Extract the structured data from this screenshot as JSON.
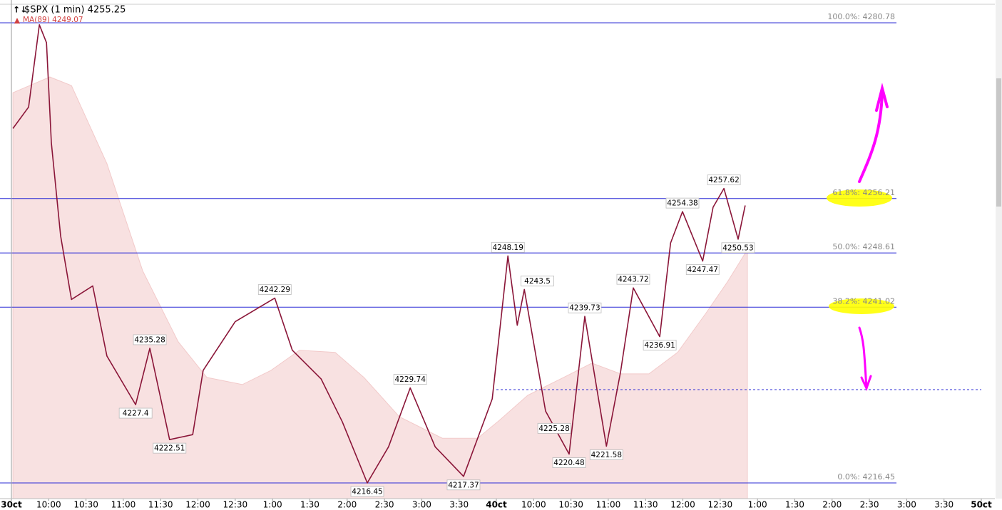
{
  "chart_data": {
    "type": "line",
    "title": "$SPX (1 min) 4255.25",
    "ma": {
      "name": "MA(89)",
      "last": 4249.07,
      "color": "#f8e1e1",
      "x": [
        0.04,
        1.03,
        1.61,
        2.56,
        3.52,
        4.47,
        5.24,
        6.19,
        6.96,
        7.72,
        8.68,
        9.45,
        10.4,
        11.55,
        12.5,
        13.08,
        13.84,
        14.8,
        15.56,
        16.33,
        17.09,
        17.86,
        18.62,
        19.2,
        19.73
      ],
      "values": [
        4271.0,
        4273.2,
        4272.0,
        4261.1,
        4246.1,
        4236.2,
        4231.2,
        4230.2,
        4232.2,
        4235.0,
        4234.7,
        4231.2,
        4225.7,
        4222.7,
        4222.7,
        4225.2,
        4228.7,
        4231.2,
        4233.2,
        4231.7,
        4231.7,
        4234.7,
        4240.2,
        4244.6,
        4249.07
      ]
    },
    "price": {
      "color": "#8a1538",
      "x": [
        0.04,
        0.46,
        0.75,
        0.94,
        1.07,
        1.32,
        1.61,
        2.18,
        2.56,
        3.33,
        3.71,
        4.24,
        4.86,
        5.14,
        6.0,
        7.06,
        7.53,
        8.3,
        8.87,
        9.54,
        10.11,
        10.69,
        11.36,
        12.12,
        12.89,
        13.31,
        13.56,
        13.75,
        14.32,
        14.95,
        15.37,
        15.95,
        16.33,
        16.67,
        17.38,
        17.67,
        17.99,
        18.53,
        18.81,
        19.1,
        19.48,
        19.67
      ],
      "values": [
        4266.0,
        4269.0,
        4280.5,
        4278.0,
        4264.0,
        4251.0,
        4242.1,
        4244.0,
        4234.2,
        4227.4,
        4235.28,
        4222.51,
        4223.2,
        4232.2,
        4239.0,
        4242.29,
        4235.0,
        4231.0,
        4225.0,
        4216.45,
        4221.5,
        4229.74,
        4221.5,
        4217.37,
        4228.2,
        4248.19,
        4238.5,
        4243.5,
        4226.5,
        4220.48,
        4239.73,
        4221.58,
        4232.0,
        4243.72,
        4236.91,
        4250.0,
        4254.38,
        4247.47,
        4255.0,
        4257.62,
        4250.53,
        4255.25
      ]
    },
    "annotations": [
      {
        "x": 3.71,
        "value": 4235.28,
        "side": "above"
      },
      {
        "x": 3.33,
        "value": 4227.4,
        "side": "below"
      },
      {
        "x": 4.24,
        "value": 4222.51,
        "side": "below"
      },
      {
        "x": 7.06,
        "value": 4242.29,
        "side": "above"
      },
      {
        "x": 9.54,
        "value": 4216.45,
        "side": "below"
      },
      {
        "x": 10.69,
        "value": 4229.74,
        "side": "above"
      },
      {
        "x": 12.12,
        "value": 4217.37,
        "side": "below"
      },
      {
        "x": 13.31,
        "value": 4248.19,
        "side": "above"
      },
      {
        "x": 14.1,
        "value": 4243.5,
        "side": "above"
      },
      {
        "x": 14.55,
        "value": 4225.28,
        "side": "below"
      },
      {
        "x": 14.95,
        "value": 4220.48,
        "side": "below"
      },
      {
        "x": 15.37,
        "value": 4239.73,
        "side": "above"
      },
      {
        "x": 15.95,
        "value": 4221.58,
        "side": "below"
      },
      {
        "x": 16.67,
        "value": 4243.72,
        "side": "above"
      },
      {
        "x": 17.38,
        "value": 4236.91,
        "side": "below"
      },
      {
        "x": 17.99,
        "value": 4254.38,
        "side": "above"
      },
      {
        "x": 18.53,
        "value": 4247.47,
        "side": "below"
      },
      {
        "x": 19.1,
        "value": 4257.62,
        "side": "above"
      },
      {
        "x": 19.48,
        "value": 4250.53,
        "side": "below"
      }
    ],
    "fib_levels": [
      {
        "label": "100.0%: 4280.78",
        "value": 4280.78,
        "highlight": false
      },
      {
        "label": "61.8%: 4256.21",
        "value": 4256.21,
        "highlight": true
      },
      {
        "label": "50.0%: 4248.61",
        "value": 4248.61,
        "highlight": false
      },
      {
        "label": "38.2%: 4241.02",
        "value": 4241.02,
        "highlight": true
      },
      {
        "label": "0.0%: 4216.45",
        "value": 4216.45,
        "highlight": false
      }
    ],
    "dashed_level": {
      "value": 4229.5,
      "x_start": 13.0
    },
    "xlim": [
      0,
      26
    ],
    "ylim": [
      4214.26,
      4283.97
    ],
    "xticks": [
      {
        "value": 0,
        "label": "30ct",
        "bold": true
      },
      {
        "value": 1,
        "label": "10:00"
      },
      {
        "value": 2,
        "label": "10:30"
      },
      {
        "value": 3,
        "label": "11:00"
      },
      {
        "value": 4,
        "label": "11:30"
      },
      {
        "value": 5,
        "label": "12:00"
      },
      {
        "value": 6,
        "label": "12:30"
      },
      {
        "value": 7,
        "label": "1:00"
      },
      {
        "value": 8,
        "label": "1:30"
      },
      {
        "value": 9,
        "label": "2:00"
      },
      {
        "value": 10,
        "label": "2:30"
      },
      {
        "value": 11,
        "label": "3:00"
      },
      {
        "value": 12,
        "label": "3:30"
      },
      {
        "value": 13,
        "label": "40ct",
        "bold": true
      },
      {
        "value": 14,
        "label": "10:00"
      },
      {
        "value": 15,
        "label": "10:30"
      },
      {
        "value": 16,
        "label": "11:00"
      },
      {
        "value": 17,
        "label": "11:30"
      },
      {
        "value": 18,
        "label": "12:00"
      },
      {
        "value": 19,
        "label": "12:30"
      },
      {
        "value": 20,
        "label": "1:00"
      },
      {
        "value": 21,
        "label": "1:30"
      },
      {
        "value": 22,
        "label": "2:00"
      },
      {
        "value": 23,
        "label": "2:30"
      },
      {
        "value": 24,
        "label": "3:00"
      },
      {
        "value": 25,
        "label": "3:30"
      },
      {
        "value": 26,
        "label": "50ct",
        "bold": true
      }
    ]
  }
}
